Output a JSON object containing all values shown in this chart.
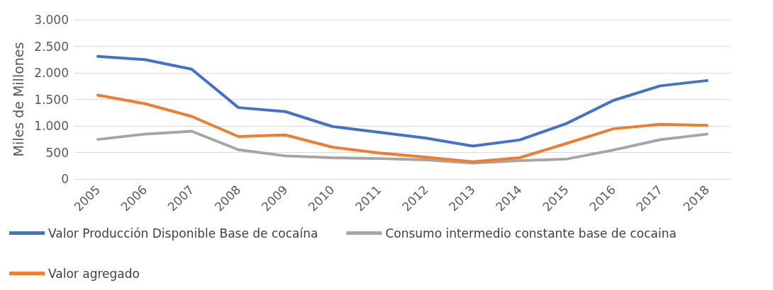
{
  "chart_data": {
    "type": "line",
    "ylabel": "Miles de Millones",
    "categories": [
      "2005",
      "2006",
      "2007",
      "2008",
      "2009",
      "2010",
      "2011",
      "2012",
      "2013",
      "2014",
      "2015",
      "2016",
      "2017",
      "2018"
    ],
    "series": [
      {
        "name": "Valor Producción Disponible Base de cocaína",
        "color": "#4472c4",
        "values": [
          2310,
          2250,
          2070,
          1345,
          1270,
          990,
          880,
          770,
          620,
          735,
          1045,
          1480,
          1755,
          1855
        ]
      },
      {
        "name": "Consumo intermedio constante base de cocaina",
        "color": "#a5a5a5",
        "values": [
          745,
          845,
          900,
          550,
          435,
          400,
          385,
          360,
          300,
          345,
          375,
          545,
          740,
          845
        ]
      },
      {
        "name": "Valor agregado",
        "color": "#ed7d31",
        "values": [
          1580,
          1420,
          1180,
          800,
          830,
          600,
          490,
          410,
          325,
          400,
          670,
          945,
          1030,
          1010
        ]
      }
    ],
    "ylim": [
      0,
      3000
    ],
    "yticks": [
      0,
      {
        "value": 500,
        "label": "500"
      },
      {
        "value": 1000,
        "label": "1.000"
      },
      {
        "value": 1500,
        "label": "1.500"
      },
      {
        "value": 2000,
        "label": "2.000"
      },
      {
        "value": 2500,
        "label": "2.500"
      },
      {
        "value": 3000,
        "label": "3.000"
      }
    ],
    "grid": "y",
    "legend": "bottom",
    "marker": "none",
    "line_style": "solid"
  }
}
